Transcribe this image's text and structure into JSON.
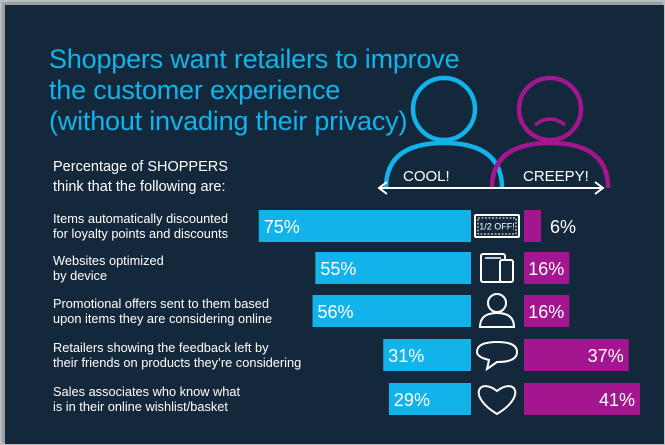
{
  "title_lines": [
    "Shoppers want retailers to improve",
    "the customer experience",
    "(without invading their privacy)"
  ],
  "subtitle_lines": [
    "Percentage of SHOPPERS",
    "think that the following are:"
  ],
  "cool_label": "COOL!",
  "creepy_label": "CREEPY!",
  "coupon_text": "1/2 OFF!",
  "colors": {
    "background": "#14283c",
    "cool": "#12b3ea",
    "creepy": "#a4168f",
    "text": "#ffffff"
  },
  "chart_data": {
    "type": "bar",
    "categories": [
      [
        "Items automatically discounted",
        "for loyalty points and discounts"
      ],
      [
        "Websites optimized",
        "by device"
      ],
      [
        "Promotional offers sent to them based",
        "upon items they are considering online"
      ],
      [
        "Retailers showing the feedback left by",
        "their friends on products they’re considering"
      ],
      [
        "Sales associates who know what",
        "is in their online wishlist/basket"
      ]
    ],
    "icons": [
      "coupon-icon",
      "devices-icon",
      "person-icon",
      "speech-bubble-icon",
      "heart-icon"
    ],
    "series": [
      {
        "name": "COOL!",
        "values": [
          75,
          55,
          56,
          31,
          29
        ],
        "labels": [
          "75%",
          "55%",
          "56%",
          "31%",
          "29%"
        ]
      },
      {
        "name": "CREEPY!",
        "values": [
          6,
          16,
          16,
          37,
          41
        ],
        "labels": [
          "6%",
          "16%",
          "16%",
          "37%",
          "41%"
        ]
      }
    ],
    "ylim": [
      0,
      100
    ]
  }
}
